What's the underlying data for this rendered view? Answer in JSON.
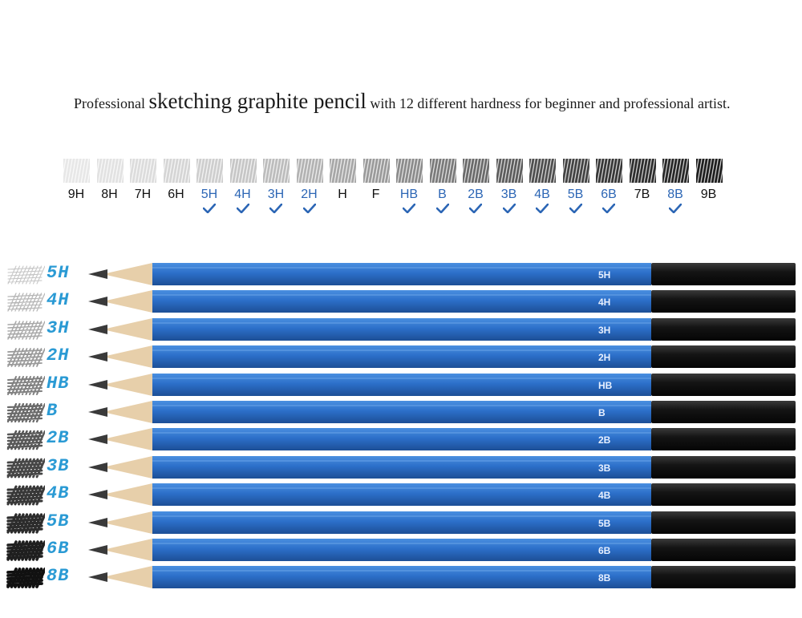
{
  "headline": {
    "prefix": "Professional ",
    "emphasis": "sketching graphite pencil",
    "suffix": " with 12 different hardness for beginner and professional artist."
  },
  "scale": {
    "grades": [
      {
        "label": "9H",
        "shade": "#e6e6e6",
        "included": false
      },
      {
        "label": "8H",
        "shade": "#e0e0e0",
        "included": false
      },
      {
        "label": "7H",
        "shade": "#dadada",
        "included": false
      },
      {
        "label": "6H",
        "shade": "#d3d3d3",
        "included": false
      },
      {
        "label": "5H",
        "shade": "#cbcbcb",
        "included": true
      },
      {
        "label": "4H",
        "shade": "#c3c3c3",
        "included": true
      },
      {
        "label": "3H",
        "shade": "#b9b9b9",
        "included": true
      },
      {
        "label": "2H",
        "shade": "#aeaeae",
        "included": true
      },
      {
        "label": "H",
        "shade": "#a2a2a2",
        "included": false
      },
      {
        "label": "F",
        "shade": "#959595",
        "included": false
      },
      {
        "label": "HB",
        "shade": "#858585",
        "included": true
      },
      {
        "label": "B",
        "shade": "#737373",
        "included": true
      },
      {
        "label": "2B",
        "shade": "#626262",
        "included": true
      },
      {
        "label": "3B",
        "shade": "#535353",
        "included": true
      },
      {
        "label": "4B",
        "shade": "#454545",
        "included": true
      },
      {
        "label": "5B",
        "shade": "#383838",
        "included": true
      },
      {
        "label": "6B",
        "shade": "#2c2c2c",
        "included": true
      },
      {
        "label": "7B",
        "shade": "#222222",
        "included": false
      },
      {
        "label": "8B",
        "shade": "#1a1a1a",
        "included": true
      },
      {
        "label": "9B",
        "shade": "#111111",
        "included": false
      }
    ]
  },
  "pencils": [
    {
      "grade": "5H",
      "side_label": "5H",
      "shade": "#c4c4c4"
    },
    {
      "grade": "4H",
      "side_label": "4H",
      "shade": "#b6b6b6"
    },
    {
      "grade": "3H",
      "side_label": "3H",
      "shade": "#a8a8a8"
    },
    {
      "grade": "2H",
      "side_label": "2H",
      "shade": "#999999"
    },
    {
      "grade": "HB",
      "side_label": "HB",
      "shade": "#808080"
    },
    {
      "grade": "B",
      "side_label": "B",
      "shade": "#6a6a6a"
    },
    {
      "grade": "2B",
      "side_label": "2B",
      "shade": "#585858"
    },
    {
      "grade": "3B",
      "side_label": "3B",
      "shade": "#474747"
    },
    {
      "grade": "4B",
      "side_label": "4B",
      "shade": "#383838"
    },
    {
      "grade": "5B",
      "side_label": "5B",
      "shade": "#2c2c2c"
    },
    {
      "grade": "6B",
      "side_label": "6B",
      "shade": "#1f1f1f"
    },
    {
      "grade": "8B",
      "side_label": "8B",
      "shade": "#111111"
    }
  ],
  "colors": {
    "barrel_blue": "#2c6fc9",
    "barrel_blue_light": "#4a8fe0",
    "barrel_black": "#141414",
    "wood": "#e7cfaa",
    "label_blue": "#2a9ad4",
    "check_blue": "#2c66b5"
  }
}
